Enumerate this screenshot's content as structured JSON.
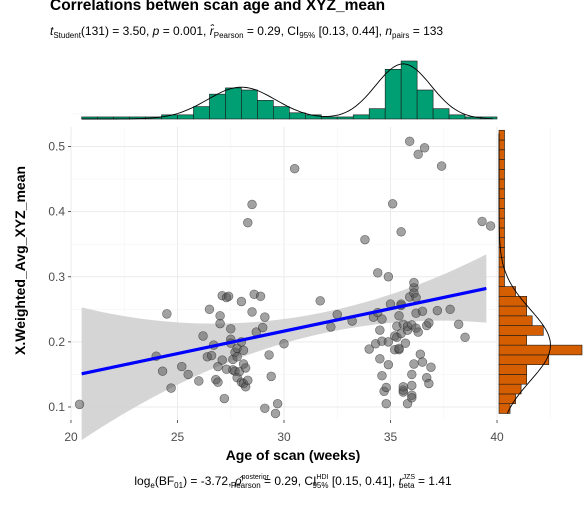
{
  "title": "Correlations betwen scan age and XYZ_mean",
  "subtitle": {
    "t_stat": "(131) = 3.50,",
    "p_value": "= 0.001,",
    "r_pearson": "= 0.29,",
    "ci": "[0.13, 0.44],",
    "n_pairs": "= 133"
  },
  "caption": {
    "log_bf": "log",
    "bf_value": "(BF",
    "bf_rest": ") = -3.72,",
    "rho": "= 0.29, CI",
    "ci_bayes": "[0.15, 0.41],",
    "r_beta": "= 1.41"
  },
  "colors": {
    "points": "#555555",
    "line": "#0000ff",
    "ribbon": "#d3d3d3",
    "top_hist": "#009e73",
    "right_hist": "#d55e00",
    "panel_bg": "#ffffff",
    "grid": "#ebebeb"
  },
  "chart_data": {
    "type": "scatter",
    "xlabel": "Age of scan (weeks)",
    "ylabel": "X.Weighted_Avg_XYZ_mean",
    "xlim": [
      20,
      40
    ],
    "ylim": [
      0.08,
      0.53
    ],
    "x_ticks": [
      "20",
      "25",
      "30",
      "35",
      "40"
    ],
    "y_ticks": [
      "0.1",
      "0.2",
      "0.3",
      "0.4",
      "0.5"
    ],
    "regression": {
      "x": [
        20.5,
        39.5
      ],
      "y": [
        0.151,
        0.282
      ]
    },
    "points": [
      [
        20.4,
        0.104
      ],
      [
        24.0,
        0.178
      ],
      [
        24.3,
        0.155
      ],
      [
        24.5,
        0.243
      ],
      [
        24.7,
        0.129
      ],
      [
        25.2,
        0.162
      ],
      [
        25.5,
        0.15
      ],
      [
        26.0,
        0.14
      ],
      [
        26.2,
        0.209
      ],
      [
        26.4,
        0.177
      ],
      [
        26.5,
        0.25
      ],
      [
        26.6,
        0.179
      ],
      [
        26.7,
        0.195
      ],
      [
        26.8,
        0.142
      ],
      [
        26.9,
        0.138
      ],
      [
        26.9,
        0.162
      ],
      [
        27.0,
        0.228
      ],
      [
        27.0,
        0.24
      ],
      [
        27.1,
        0.172
      ],
      [
        27.1,
        0.271
      ],
      [
        27.2,
        0.113
      ],
      [
        27.3,
        0.158
      ],
      [
        27.3,
        0.268
      ],
      [
        27.4,
        0.27
      ],
      [
        27.5,
        0.22
      ],
      [
        27.5,
        0.204
      ],
      [
        27.5,
        0.198
      ],
      [
        27.6,
        0.157
      ],
      [
        27.6,
        0.173
      ],
      [
        27.7,
        0.155
      ],
      [
        27.7,
        0.184
      ],
      [
        27.8,
        0.19
      ],
      [
        27.8,
        0.145
      ],
      [
        27.8,
        0.177
      ],
      [
        27.9,
        0.154
      ],
      [
        28.0,
        0.138
      ],
      [
        28.0,
        0.2
      ],
      [
        28.0,
        0.262
      ],
      [
        28.1,
        0.187
      ],
      [
        28.1,
        0.136
      ],
      [
        28.1,
        0.166
      ],
      [
        28.2,
        0.16
      ],
      [
        28.2,
        0.131
      ],
      [
        28.3,
        0.141
      ],
      [
        28.3,
        0.383
      ],
      [
        28.5,
        0.411
      ],
      [
        28.5,
        0.246
      ],
      [
        28.6,
        0.273
      ],
      [
        28.7,
        0.215
      ],
      [
        28.9,
        0.27
      ],
      [
        29.0,
        0.222
      ],
      [
        29.1,
        0.238
      ],
      [
        29.1,
        0.098
      ],
      [
        29.3,
        0.18
      ],
      [
        29.4,
        0.147
      ],
      [
        29.6,
        0.09
      ],
      [
        29.7,
        0.105
      ],
      [
        30.0,
        0.197
      ],
      [
        30.5,
        0.466
      ],
      [
        31.7,
        0.263
      ],
      [
        32.2,
        0.223
      ],
      [
        32.5,
        0.242
      ],
      [
        33.2,
        0.232
      ],
      [
        33.8,
        0.357
      ],
      [
        34.0,
        0.189
      ],
      [
        34.2,
        0.238
      ],
      [
        34.3,
        0.197
      ],
      [
        34.4,
        0.245
      ],
      [
        34.4,
        0.306
      ],
      [
        34.5,
        0.218
      ],
      [
        34.5,
        0.174
      ],
      [
        34.6,
        0.235
      ],
      [
        34.6,
        0.201
      ],
      [
        34.6,
        0.148
      ],
      [
        34.7,
        0.124
      ],
      [
        34.8,
        0.105
      ],
      [
        34.8,
        0.13
      ],
      [
        34.9,
        0.2
      ],
      [
        34.9,
        0.165
      ],
      [
        34.9,
        0.3
      ],
      [
        35.0,
        0.258
      ],
      [
        35.1,
        0.412
      ],
      [
        35.2,
        0.209
      ],
      [
        35.2,
        0.188
      ],
      [
        35.3,
        0.207
      ],
      [
        35.3,
        0.224
      ],
      [
        35.4,
        0.188
      ],
      [
        35.4,
        0.19
      ],
      [
        35.4,
        0.24
      ],
      [
        35.5,
        0.256
      ],
      [
        35.5,
        0.369
      ],
      [
        35.5,
        0.258
      ],
      [
        35.5,
        0.213
      ],
      [
        35.6,
        0.227
      ],
      [
        35.6,
        0.123
      ],
      [
        35.6,
        0.126
      ],
      [
        35.6,
        0.131
      ],
      [
        35.7,
        0.198
      ],
      [
        35.8,
        0.218
      ],
      [
        35.8,
        0.105
      ],
      [
        35.8,
        0.224
      ],
      [
        35.9,
        0.269
      ],
      [
        35.9,
        0.508
      ],
      [
        36.0,
        0.226
      ],
      [
        36.0,
        0.118
      ],
      [
        36.0,
        0.133
      ],
      [
        36.0,
        0.114
      ],
      [
        36.0,
        0.15
      ],
      [
        36.1,
        0.166
      ],
      [
        36.1,
        0.283
      ],
      [
        36.1,
        0.291
      ],
      [
        36.1,
        0.275
      ],
      [
        36.2,
        0.268
      ],
      [
        36.2,
        0.244
      ],
      [
        36.2,
        0.221
      ],
      [
        36.3,
        0.215
      ],
      [
        36.3,
        0.488
      ],
      [
        36.4,
        0.181
      ],
      [
        36.5,
        0.247
      ],
      [
        36.5,
        0.169
      ],
      [
        36.6,
        0.498
      ],
      [
        36.7,
        0.225
      ],
      [
        36.7,
        0.145
      ],
      [
        36.8,
        0.229
      ],
      [
        36.8,
        0.136
      ],
      [
        36.9,
        0.161
      ],
      [
        37.2,
        0.248
      ],
      [
        37.4,
        0.47
      ],
      [
        37.8,
        0.25
      ],
      [
        38.2,
        0.227
      ],
      [
        38.5,
        0.207
      ],
      [
        39.3,
        0.385
      ],
      [
        39.7,
        0.378
      ]
    ],
    "top_histogram": [
      {
        "x0": 20.5,
        "count": 1
      },
      {
        "x0": 21.25,
        "count": 1
      },
      {
        "x0": 22.0,
        "count": 1
      },
      {
        "x0": 22.75,
        "count": 1
      },
      {
        "x0": 23.5,
        "count": 1
      },
      {
        "x0": 24.25,
        "count": 2
      },
      {
        "x0": 25.0,
        "count": 2
      },
      {
        "x0": 25.75,
        "count": 6
      },
      {
        "x0": 26.5,
        "count": 12
      },
      {
        "x0": 27.25,
        "count": 15
      },
      {
        "x0": 28.0,
        "count": 14
      },
      {
        "x0": 28.75,
        "count": 9
      },
      {
        "x0": 29.5,
        "count": 6
      },
      {
        "x0": 30.25,
        "count": 3
      },
      {
        "x0": 31.0,
        "count": 2
      },
      {
        "x0": 31.75,
        "count": 1
      },
      {
        "x0": 32.5,
        "count": 1
      },
      {
        "x0": 33.25,
        "count": 2
      },
      {
        "x0": 34.0,
        "count": 5
      },
      {
        "x0": 34.75,
        "count": 24
      },
      {
        "x0": 35.5,
        "count": 28
      },
      {
        "x0": 36.25,
        "count": 14
      },
      {
        "x0": 37.0,
        "count": 5
      },
      {
        "x0": 37.75,
        "count": 2
      },
      {
        "x0": 38.5,
        "count": 1
      },
      {
        "x0": 39.25,
        "count": 1
      }
    ],
    "right_histogram": [
      {
        "y0": 0.09,
        "count": 2
      },
      {
        "y0": 0.105,
        "count": 3
      },
      {
        "y0": 0.12,
        "count": 4
      },
      {
        "y0": 0.135,
        "count": 5
      },
      {
        "y0": 0.15,
        "count": 5
      },
      {
        "y0": 0.165,
        "count": 9
      },
      {
        "y0": 0.18,
        "count": 15
      },
      {
        "y0": 0.195,
        "count": 5
      },
      {
        "y0": 0.21,
        "count": 8
      },
      {
        "y0": 0.225,
        "count": 6
      },
      {
        "y0": 0.24,
        "count": 5
      },
      {
        "y0": 0.255,
        "count": 5
      },
      {
        "y0": 0.27,
        "count": 3
      },
      {
        "y0": 0.285,
        "count": 1
      },
      {
        "y0": 0.3,
        "count": 1
      },
      {
        "y0": 0.315,
        "count": 1
      },
      {
        "y0": 0.33,
        "count": 1
      },
      {
        "y0": 0.345,
        "count": 1
      },
      {
        "y0": 0.36,
        "count": 1
      },
      {
        "y0": 0.375,
        "count": 1
      },
      {
        "y0": 0.39,
        "count": 1
      },
      {
        "y0": 0.405,
        "count": 1
      },
      {
        "y0": 0.42,
        "count": 1
      },
      {
        "y0": 0.435,
        "count": 1
      },
      {
        "y0": 0.45,
        "count": 1
      },
      {
        "y0": 0.465,
        "count": 1
      },
      {
        "y0": 0.48,
        "count": 1
      },
      {
        "y0": 0.495,
        "count": 1
      },
      {
        "y0": 0.51,
        "count": 1
      }
    ]
  }
}
